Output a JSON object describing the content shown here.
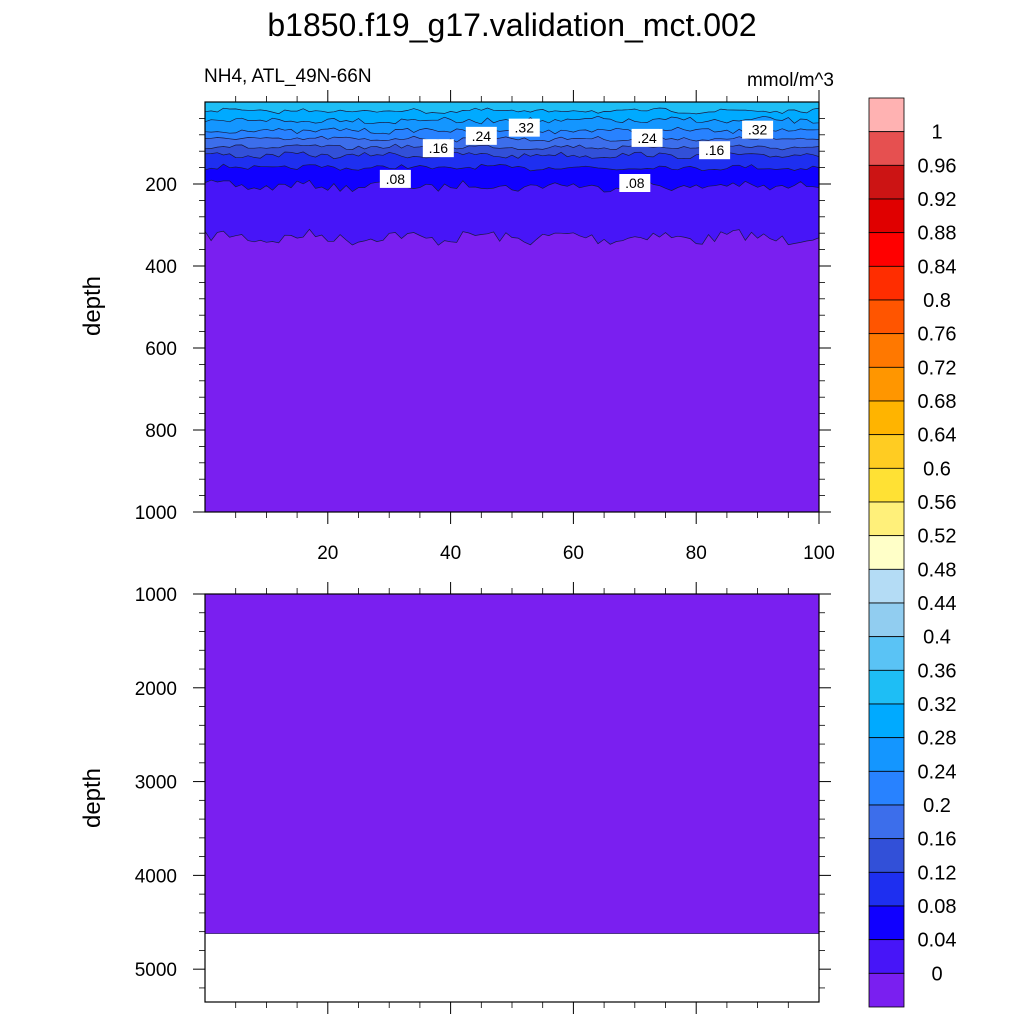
{
  "chart_data": {
    "type": "heatmap",
    "title": "b1850.f19_g17.validation_mct.002",
    "variable_label": "NH4, ATL_49N-66N",
    "units_label": "mmol/m^3",
    "panels": [
      {
        "name": "upper",
        "ylabel": "depth",
        "ylim": [
          1000,
          0
        ],
        "yticks": [
          "200",
          "400",
          "600",
          "800",
          "1000"
        ],
        "ytick_values": [
          200,
          400,
          600,
          800,
          1000
        ],
        "xlim": [
          0,
          100
        ],
        "xticks": [
          "20",
          "40",
          "60",
          "80",
          "100"
        ],
        "xtick_values": [
          20,
          40,
          60,
          80,
          100
        ],
        "contour_labels": [
          {
            "text": ".08",
            "x": 31,
            "depth": 190
          },
          {
            "text": ".16",
            "x": 38,
            "depth": 115
          },
          {
            "text": ".24",
            "x": 45,
            "depth": 85
          },
          {
            "text": ".32",
            "x": 52,
            "depth": 65
          },
          {
            "text": ".08",
            "x": 70,
            "depth": 200
          },
          {
            "text": ".24",
            "x": 72,
            "depth": 90
          },
          {
            "text": ".16",
            "x": 83,
            "depth": 120
          },
          {
            "text": ".32",
            "x": 90,
            "depth": 70
          }
        ],
        "approx_levels_by_depth": [
          {
            "depth": 10,
            "value": 0.34
          },
          {
            "depth": 60,
            "value": 0.28
          },
          {
            "depth": 120,
            "value": 0.16
          },
          {
            "depth": 180,
            "value": 0.1
          },
          {
            "depth": 260,
            "value": 0.06
          },
          {
            "depth": 500,
            "value": 0.02
          },
          {
            "depth": 1000,
            "value": 0.02
          }
        ]
      },
      {
        "name": "lower",
        "ylabel": "depth",
        "ylim": [
          5350,
          1000
        ],
        "yticks": [
          "1000",
          "2000",
          "3000",
          "4000",
          "5000"
        ],
        "ytick_values": [
          1000,
          2000,
          3000,
          4000,
          5000
        ],
        "xlim": [
          0,
          100
        ],
        "data_bottom_depth": 4620,
        "value": 0.02
      }
    ],
    "colorbar": {
      "labels": [
        "1",
        "0.96",
        "0.92",
        "0.88",
        "0.84",
        "0.8",
        "0.76",
        "0.72",
        "0.68",
        "0.64",
        "0.6",
        "0.56",
        "0.52",
        "0.48",
        "0.44",
        "0.4",
        "0.36",
        "0.32",
        "0.28",
        "0.24",
        "0.2",
        "0.16",
        "0.12",
        "0.08",
        "0.04",
        "0"
      ],
      "colors": [
        "#ffb2b2",
        "#e65050",
        "#cc1414",
        "#e00000",
        "#ff0000",
        "#ff2d00",
        "#ff5500",
        "#ff7800",
        "#ff9600",
        "#ffb400",
        "#ffcc22",
        "#ffe134",
        "#fff07a",
        "#ffffc8",
        "#b4dcf5",
        "#91cdf0",
        "#5ac3f5",
        "#1ebef5",
        "#00aaff",
        "#1496ff",
        "#2882ff",
        "#3c6eeb",
        "#3250d8",
        "#1e2ff0",
        "#1000ff",
        "#4715f8",
        "#7a1ff0"
      ]
    }
  }
}
